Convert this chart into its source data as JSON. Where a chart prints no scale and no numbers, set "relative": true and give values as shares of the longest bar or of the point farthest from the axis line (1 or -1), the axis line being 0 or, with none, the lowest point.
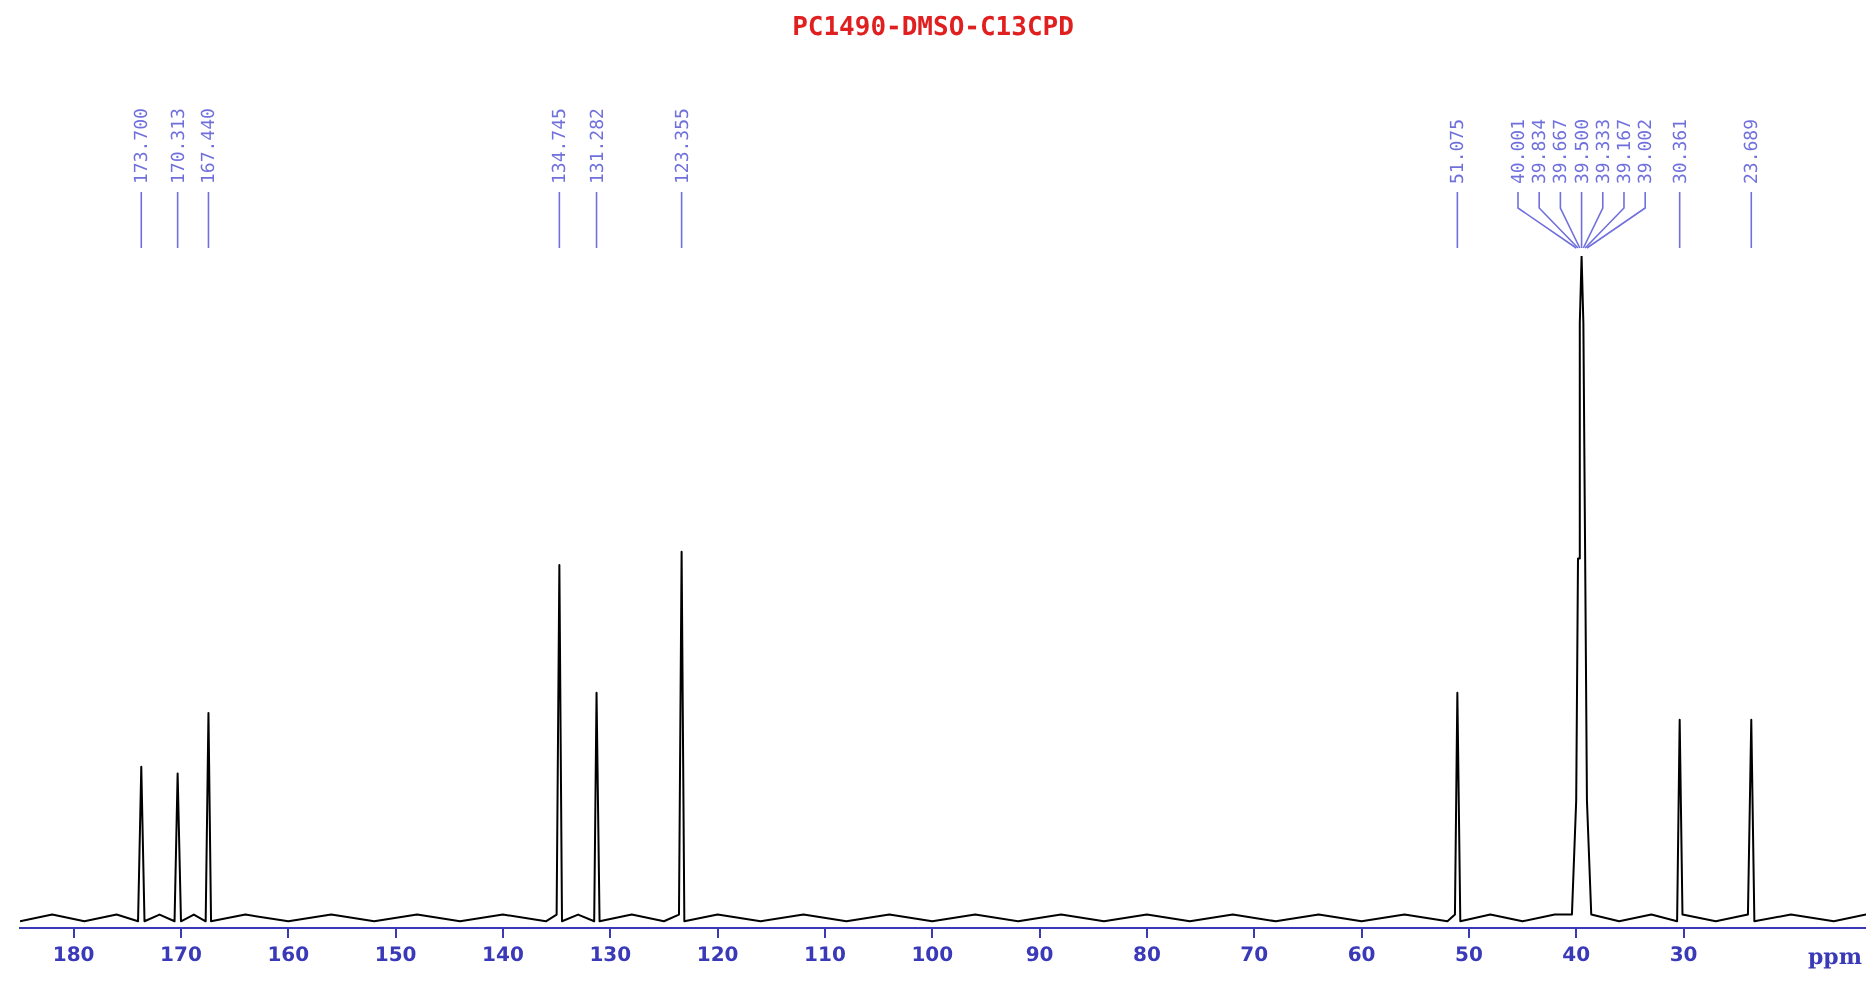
{
  "chart_data": {
    "type": "line",
    "title": "PC1490-DMSO-C13CPD",
    "xlabel": "ppm",
    "relative": true,
    "legend": false,
    "grid": false,
    "marker": "none",
    "line_style": "solid",
    "tick_labels": "x",
    "xlim": [
      185,
      13
    ],
    "xticks": [
      180,
      170,
      160,
      150,
      140,
      130,
      120,
      110,
      100,
      90,
      80,
      70,
      60,
      50,
      40,
      30
    ],
    "series": [
      {
        "color": "#000000",
        "x": [
          185,
          182,
          179,
          176,
          174.0,
          173.7,
          173.4,
          172,
          170.6,
          170.313,
          170.0,
          168.8,
          167.7,
          167.44,
          167.2,
          164,
          160,
          156,
          152,
          148,
          144,
          140,
          136,
          135.0,
          134.745,
          134.5,
          133,
          131.5,
          131.282,
          131.0,
          128,
          125,
          123.6,
          123.355,
          123.1,
          120,
          116,
          112,
          108,
          104,
          100,
          96,
          92,
          88,
          84,
          80,
          76,
          72,
          68,
          64,
          60,
          56,
          52,
          51.3,
          51.075,
          50.8,
          48,
          45,
          42,
          40.4,
          40.001,
          39.834,
          39.667,
          39.5,
          39.333,
          39.167,
          39.002,
          38.6,
          36,
          33,
          30.6,
          30.361,
          30.1,
          27,
          24.0,
          23.689,
          23.4,
          20,
          16,
          13
        ],
        "values": [
          0.01,
          0.02,
          0.01,
          0.02,
          0.01,
          0.24,
          0.01,
          0.02,
          0.01,
          0.23,
          0.01,
          0.02,
          0.01,
          0.32,
          0.01,
          0.02,
          0.01,
          0.02,
          0.01,
          0.02,
          0.01,
          0.02,
          0.01,
          0.02,
          0.54,
          0.01,
          0.02,
          0.01,
          0.35,
          0.01,
          0.02,
          0.01,
          0.02,
          0.56,
          0.01,
          0.02,
          0.01,
          0.02,
          0.01,
          0.02,
          0.01,
          0.02,
          0.01,
          0.02,
          0.01,
          0.02,
          0.01,
          0.02,
          0.01,
          0.02,
          0.01,
          0.02,
          0.01,
          0.02,
          0.35,
          0.01,
          0.02,
          0.01,
          0.02,
          0.02,
          0.19,
          0.55,
          0.9,
          1,
          0.9,
          0.55,
          0.19,
          0.02,
          0.01,
          0.02,
          0.01,
          0.31,
          0.02,
          0.01,
          0.02,
          0.31,
          0.01,
          0.02,
          0.01,
          0.02
        ]
      }
    ],
    "annotations": [
      {
        "text": "173.700",
        "x": 173.7
      },
      {
        "text": "170.313",
        "x": 170.313
      },
      {
        "text": "167.440",
        "x": 167.44
      },
      {
        "text": "134.745",
        "x": 134.745
      },
      {
        "text": "131.282",
        "x": 131.282
      },
      {
        "text": "123.355",
        "x": 123.355
      },
      {
        "text": "51.075",
        "x": 51.075
      },
      {
        "text": "40.001",
        "x": 40.001
      },
      {
        "text": "39.834",
        "x": 39.834
      },
      {
        "text": "39.667",
        "x": 39.667
      },
      {
        "text": "39.500",
        "x": 39.5
      },
      {
        "text": "39.333",
        "x": 39.333
      },
      {
        "text": "39.167",
        "x": 39.167
      },
      {
        "text": "39.002",
        "x": 39.002
      },
      {
        "text": "30.361",
        "x": 30.361
      },
      {
        "text": "23.689",
        "x": 23.689
      }
    ]
  }
}
